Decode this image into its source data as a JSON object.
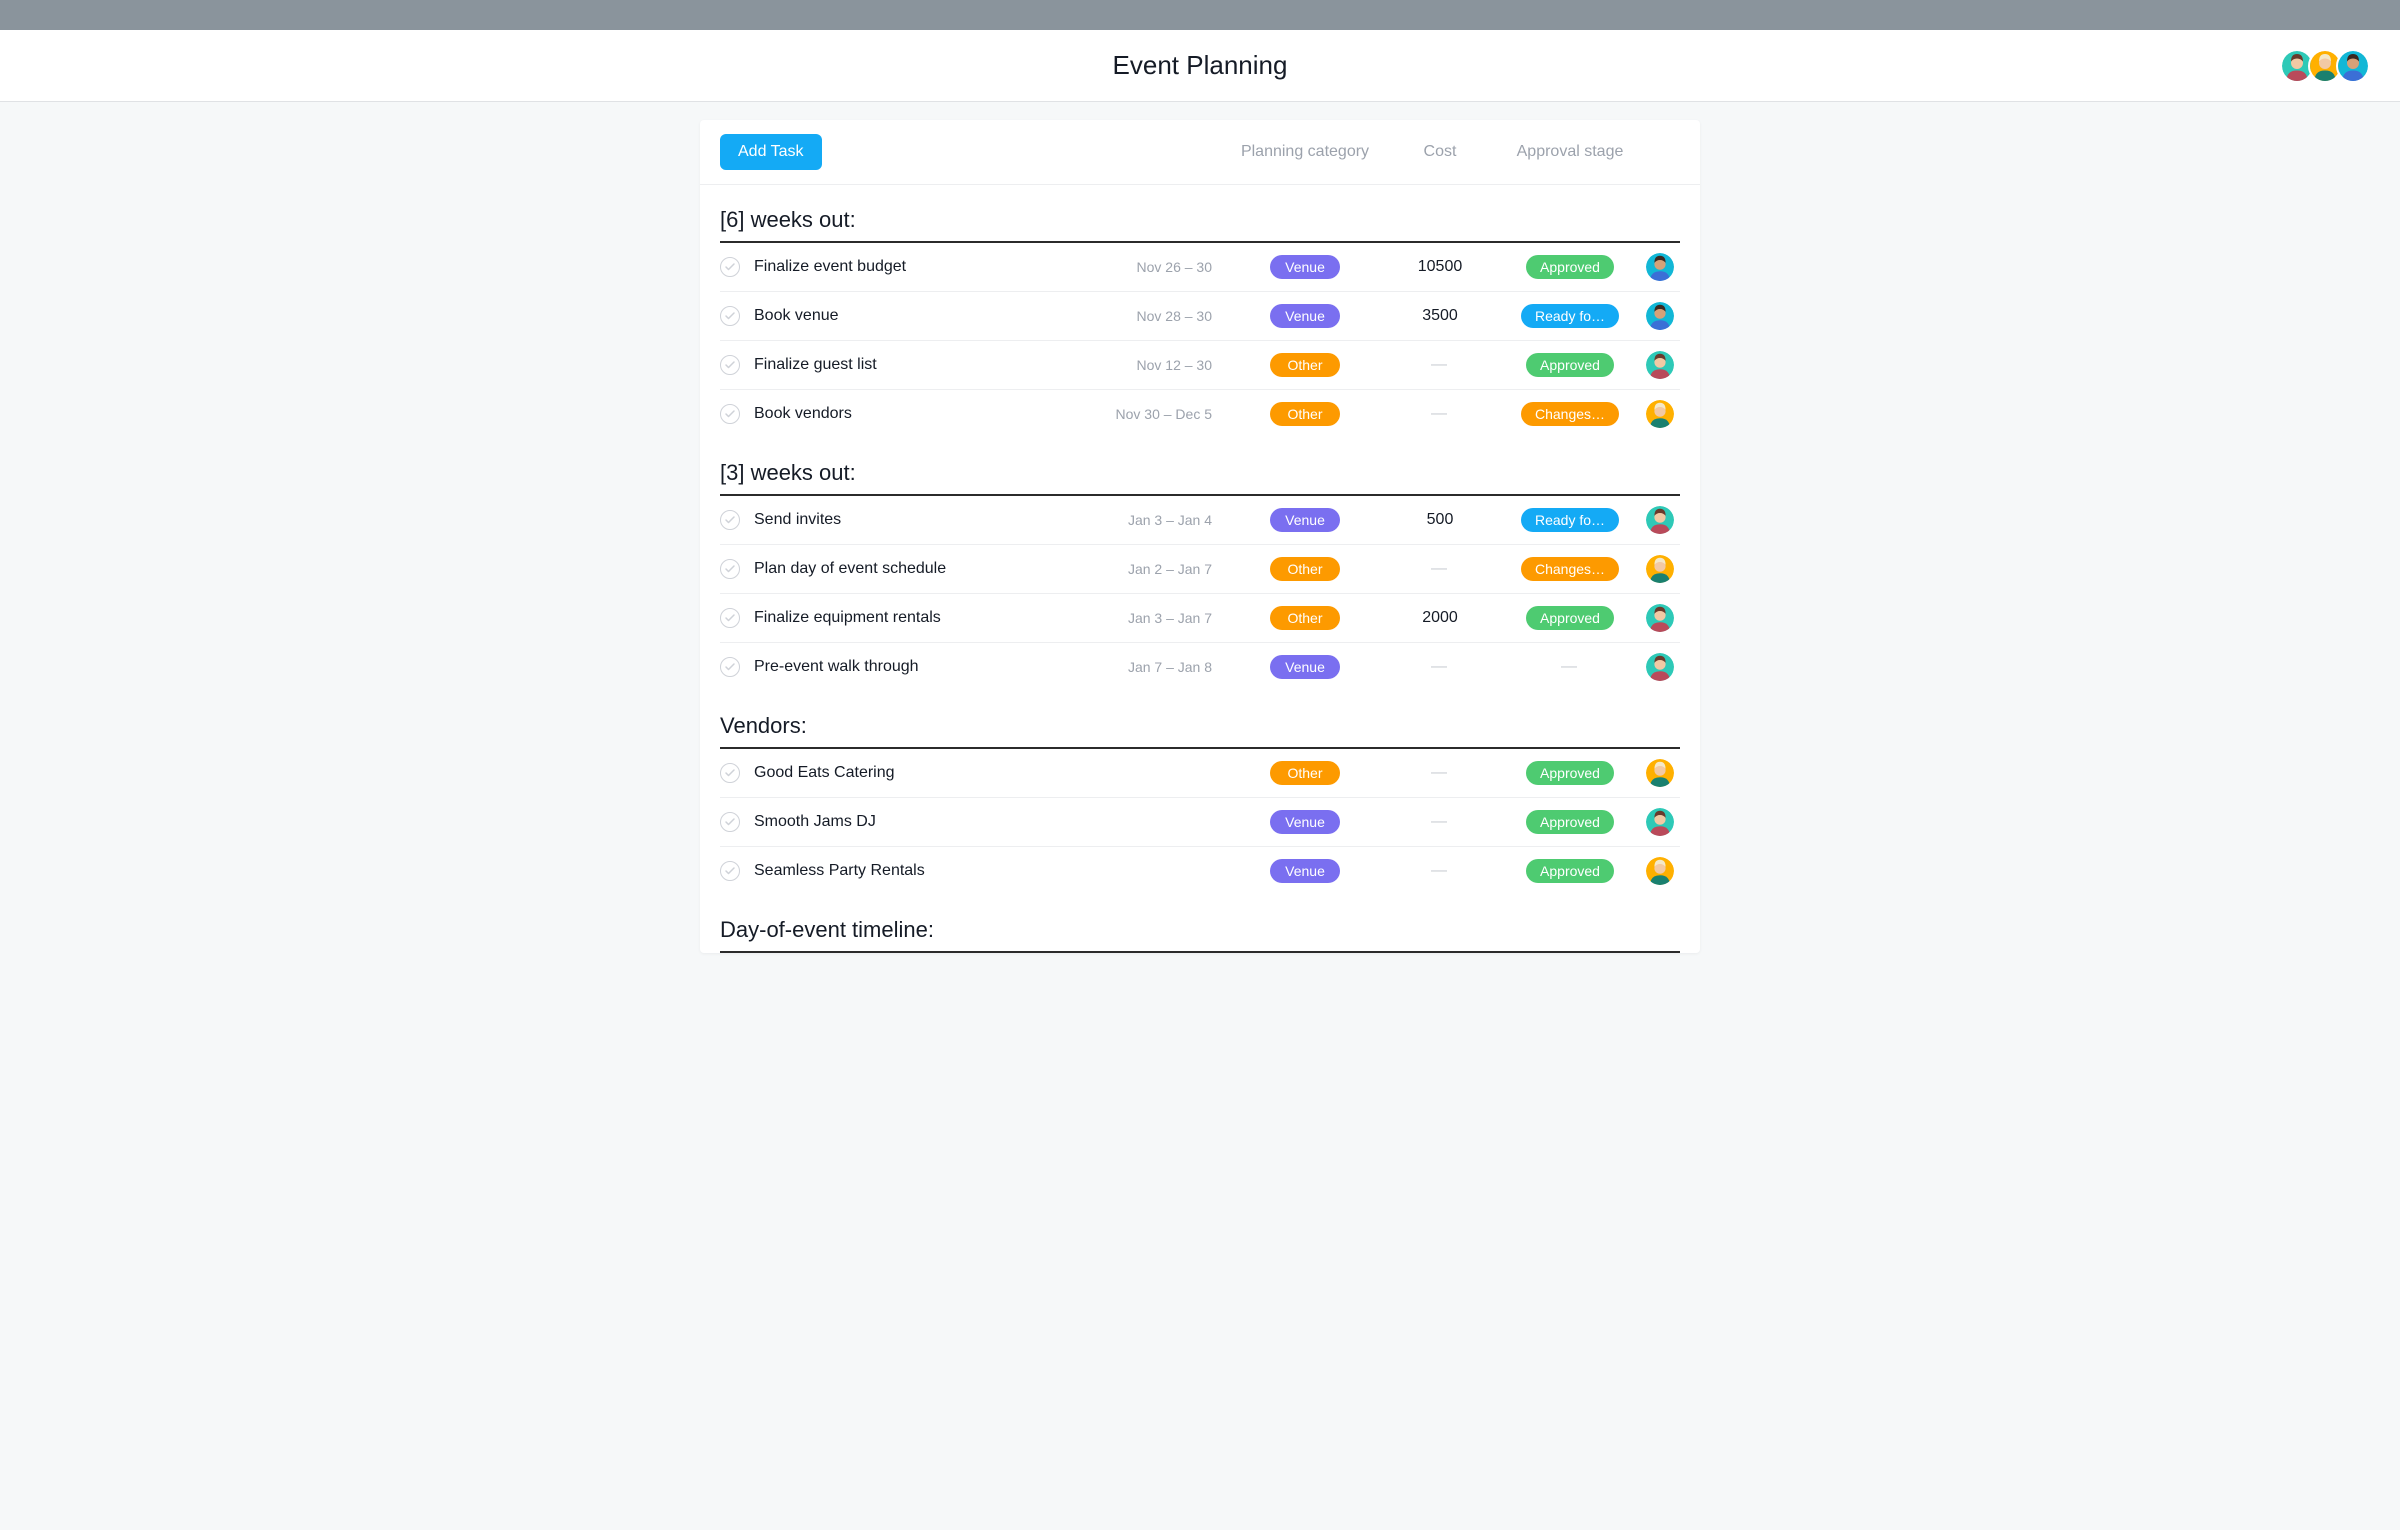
{
  "colors": {
    "topbar": "#8a949c",
    "page_bg": "#f6f8f9",
    "board_bg": "#ffffff",
    "primary_button": "#14aaf5",
    "text": "#151b26",
    "muted": "#9ca2ac",
    "row_divider": "#edeef0",
    "section_divider": "#2b2b2b"
  },
  "header": {
    "title": "Event Planning",
    "avatars": [
      {
        "bg": "#2ec9b7",
        "hair": "#6a3a2c",
        "skin": "#f2c9a4",
        "shirt": "#b94a5a"
      },
      {
        "bg": "#ffb000",
        "hair": "#f4e8c8",
        "skin": "#f2c9a4",
        "shirt": "#1a806f"
      },
      {
        "bg": "#12b7d6",
        "hair": "#3a2820",
        "skin": "#d6a178",
        "shirt": "#3b6fd6"
      }
    ]
  },
  "board": {
    "add_task_label": "Add Task",
    "columns": {
      "category": "Planning category",
      "cost": "Cost",
      "approval": "Approval stage"
    }
  },
  "pill_colors": {
    "Venue": "#7a6ff0",
    "Other": "#fd9a00",
    "Approved": "#4ecb71",
    "Ready fo…": "#14aaf5",
    "Changes…": "#fd9a00"
  },
  "avatar_presets": {
    "teal_woman": {
      "bg": "#2ec9b7",
      "hair": "#6a3a2c",
      "skin": "#f2c9a4",
      "shirt": "#b94a5a"
    },
    "yellow_woman": {
      "bg": "#ffb000",
      "hair": "#f4e8c8",
      "skin": "#f2c9a4",
      "shirt": "#1a806f"
    },
    "cyan_man": {
      "bg": "#12b7d6",
      "hair": "#3a2820",
      "skin": "#d6a178",
      "shirt": "#3b6fd6"
    }
  },
  "sections": [
    {
      "title": "[6] weeks out:",
      "tasks": [
        {
          "name": "Finalize event budget",
          "date": "Nov 26 – 30",
          "category": "Venue",
          "cost": "10500",
          "approval": "Approved",
          "assignee": "cyan_man"
        },
        {
          "name": "Book venue",
          "date": "Nov 28 – 30",
          "category": "Venue",
          "cost": "3500",
          "approval": "Ready fo…",
          "assignee": "cyan_man"
        },
        {
          "name": "Finalize guest list",
          "date": "Nov 12 – 30",
          "category": "Other",
          "cost": "",
          "approval": "Approved",
          "assignee": "teal_woman"
        },
        {
          "name": "Book vendors",
          "date": "Nov 30 – Dec 5",
          "category": "Other",
          "cost": "",
          "approval": "Changes…",
          "assignee": "yellow_woman"
        }
      ]
    },
    {
      "title": "[3] weeks out:",
      "tasks": [
        {
          "name": "Send invites",
          "date": "Jan 3 – Jan 4",
          "category": "Venue",
          "cost": "500",
          "approval": "Ready fo…",
          "assignee": "teal_woman"
        },
        {
          "name": "Plan day of event schedule",
          "date": "Jan 2 – Jan 7",
          "category": "Other",
          "cost": "",
          "approval": "Changes…",
          "assignee": "yellow_woman"
        },
        {
          "name": "Finalize equipment rentals",
          "date": "Jan 3 – Jan 7",
          "category": "Other",
          "cost": "2000",
          "approval": "Approved",
          "assignee": "teal_woman"
        },
        {
          "name": "Pre-event walk through",
          "date": "Jan 7 – Jan 8",
          "category": "Venue",
          "cost": "",
          "approval": "",
          "assignee": "teal_woman"
        }
      ]
    },
    {
      "title": "Vendors:",
      "tasks": [
        {
          "name": "Good Eats Catering",
          "date": "",
          "category": "Other",
          "cost": "",
          "approval": "Approved",
          "assignee": "yellow_woman"
        },
        {
          "name": "Smooth Jams DJ",
          "date": "",
          "category": "Venue",
          "cost": "",
          "approval": "Approved",
          "assignee": "teal_woman"
        },
        {
          "name": "Seamless Party Rentals",
          "date": "",
          "category": "Venue",
          "cost": "",
          "approval": "Approved",
          "assignee": "yellow_woman"
        }
      ]
    },
    {
      "title": "Day-of-event timeline:",
      "tasks": []
    }
  ]
}
